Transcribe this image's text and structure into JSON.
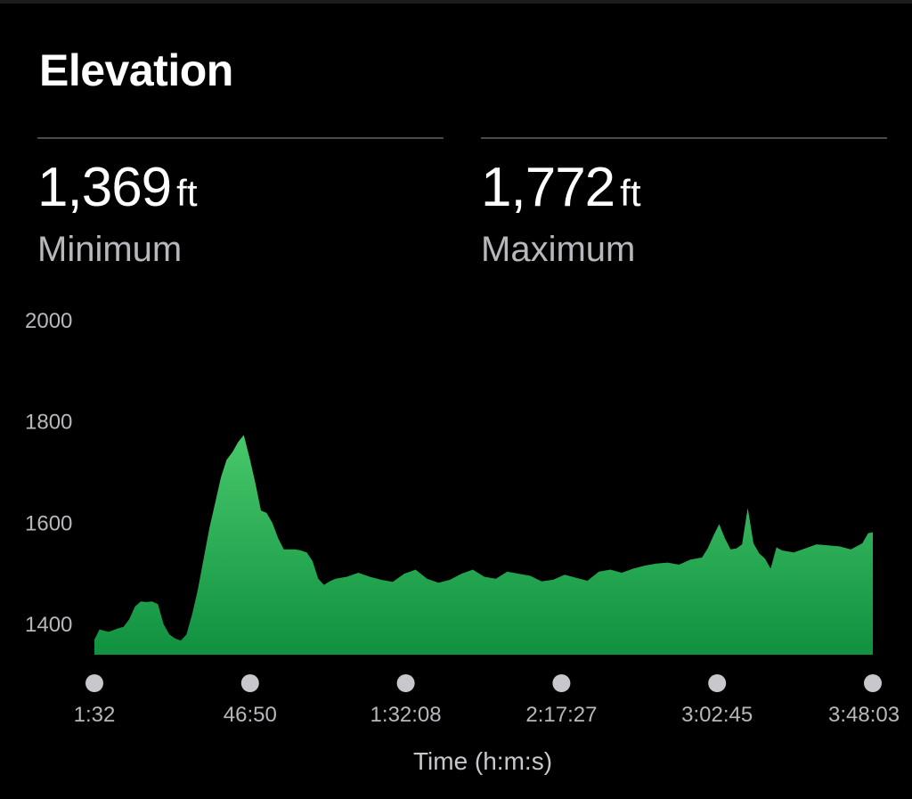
{
  "header": {
    "title": "Elevation"
  },
  "stats": {
    "minimum": {
      "value": "1,369",
      "unit": "ft",
      "label": "Minimum"
    },
    "maximum": {
      "value": "1,772",
      "unit": "ft",
      "label": "Maximum"
    }
  },
  "colors": {
    "fill_top": "#48c76a",
    "fill_bottom": "#0f9140",
    "dot": "#c7c7cc",
    "text_secondary": "#b8b8bc"
  },
  "chart_data": {
    "type": "area",
    "title": "Elevation",
    "xlabel": "Time (h:m:s)",
    "ylabel": "",
    "ylim": [
      1340,
      2000
    ],
    "xlim_seconds": [
      92,
      13683
    ],
    "y_ticks": [
      1400,
      1600,
      1800,
      2000
    ],
    "y_tick_labels": [
      "1400",
      "1600",
      "1800",
      "2000"
    ],
    "x_ticks": [
      "1:32",
      "46:50",
      "1:32:08",
      "2:17:27",
      "3:02:45",
      "3:48:03"
    ],
    "grid": false,
    "legend": "none",
    "series": [
      {
        "x": [
          "1:32",
          "3:00",
          "5:40",
          "8:20",
          "10:00",
          "11:40",
          "13:20",
          "15:00",
          "16:40",
          "18:20",
          "20:00",
          "21:40",
          "23:20",
          "25:00",
          "26:40",
          "28:20",
          "30:00",
          "31:40",
          "33:20",
          "35:00",
          "36:40",
          "38:20",
          "40:00",
          "41:40",
          "43:20",
          "45:00",
          "46:40",
          "48:20",
          "50:00",
          "51:40",
          "53:20",
          "55:00",
          "56:40",
          "58:20",
          "1:00:00",
          "1:01:40",
          "1:03:20",
          "1:05:00",
          "1:06:40",
          "1:08:20",
          "1:10:00",
          "1:11:40",
          "1:13:20",
          "1:15:00",
          "1:16:40",
          "1:18:20",
          "1:21:40",
          "1:25:00",
          "1:28:20",
          "1:31:40",
          "1:35:00",
          "1:38:20",
          "1:41:40",
          "1:45:00",
          "1:48:20",
          "1:51:40",
          "1:55:00",
          "1:58:20",
          "2:01:40",
          "2:05:00",
          "2:08:20",
          "2:11:40",
          "2:15:00",
          "2:18:20",
          "2:21:40",
          "2:25:00",
          "2:28:20",
          "2:31:40",
          "2:35:00",
          "2:38:20",
          "2:41:40",
          "2:45:00",
          "2:48:20",
          "2:51:40",
          "2:55:00",
          "2:58:20",
          "3:00:00",
          "3:01:40",
          "3:03:20",
          "3:05:00",
          "3:06:40",
          "3:08:20",
          "3:10:00",
          "3:11:40",
          "3:13:20",
          "3:15:00",
          "3:16:40",
          "3:18:20",
          "3:20:00",
          "3:21:40",
          "3:25:00",
          "3:28:20",
          "3:31:40",
          "3:35:00",
          "3:38:20",
          "3:41:40",
          "3:45:00",
          "3:46:40",
          "3:48:03"
        ],
        "y": [
          1370,
          1390,
          1385,
          1392,
          1395,
          1410,
          1435,
          1445,
          1444,
          1445,
          1440,
          1400,
          1380,
          1372,
          1368,
          1380,
          1420,
          1470,
          1530,
          1590,
          1640,
          1690,
          1725,
          1740,
          1760,
          1774,
          1730,
          1680,
          1625,
          1620,
          1600,
          1570,
          1548,
          1548,
          1548,
          1546,
          1542,
          1525,
          1490,
          1478,
          1485,
          1490,
          1492,
          1494,
          1498,
          1502,
          1494,
          1488,
          1484,
          1500,
          1508,
          1490,
          1482,
          1488,
          1500,
          1508,
          1494,
          1490,
          1504,
          1500,
          1496,
          1485,
          1488,
          1498,
          1492,
          1486,
          1504,
          1508,
          1502,
          1510,
          1516,
          1520,
          1522,
          1518,
          1528,
          1532,
          1550,
          1575,
          1598,
          1570,
          1548,
          1550,
          1558,
          1630,
          1560,
          1540,
          1530,
          1510,
          1552,
          1546,
          1542,
          1550,
          1558,
          1556,
          1554,
          1548,
          1560,
          1580,
          1582
        ]
      }
    ]
  }
}
